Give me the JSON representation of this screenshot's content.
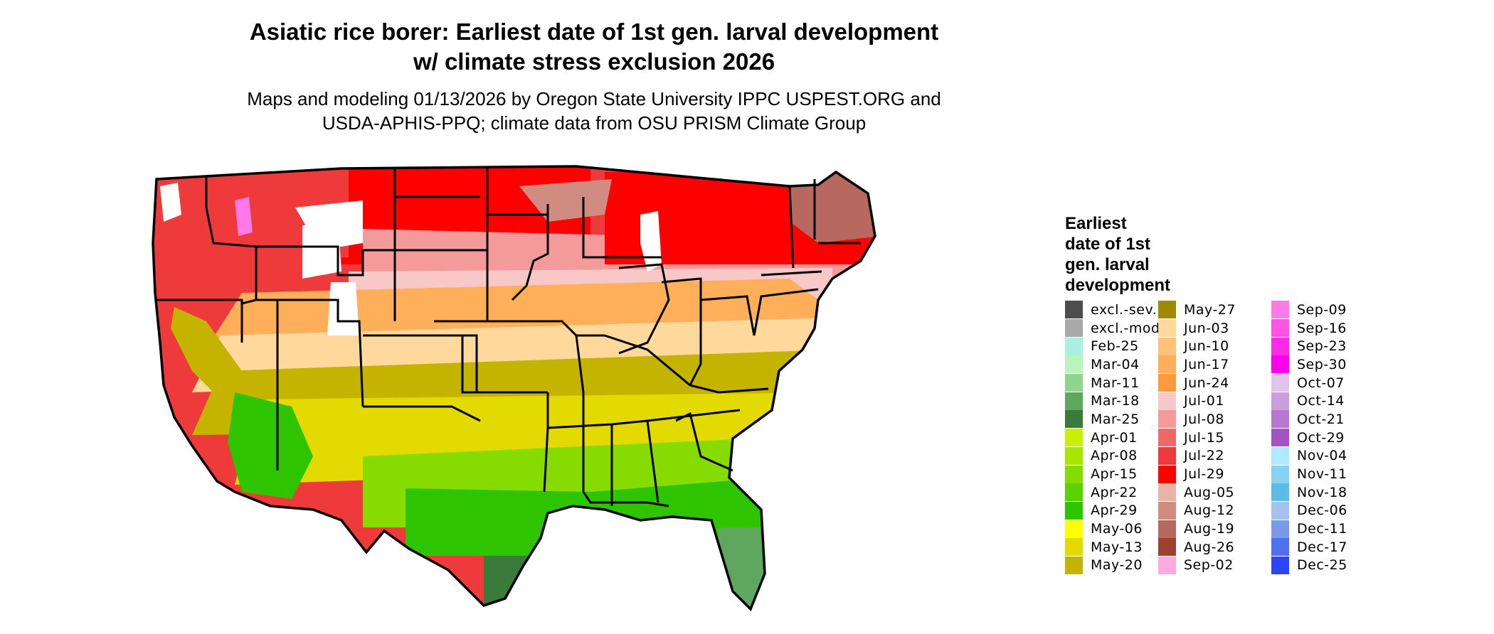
{
  "title": {
    "line1": "Asiatic rice borer: Earliest date of 1st gen. larval development",
    "line2": "w/ climate stress exclusion 2026"
  },
  "subtitle": {
    "line1": "Maps and modeling 01/13/2026 by Oregon State University IPPC USPEST.ORG and",
    "line2": "USDA-APHIS-PPQ; climate data from OSU PRISM Climate Group"
  },
  "legend": {
    "title_lines": [
      "Earliest",
      "date of 1st",
      "gen. larval",
      "development"
    ],
    "items": [
      {
        "label": "excl.-sev.",
        "color": "#4d4d4d"
      },
      {
        "label": "excl.-mod.",
        "color": "#a9a9a9"
      },
      {
        "label": "Feb-25",
        "color": "#aaf0e1"
      },
      {
        "label": "Mar-04",
        "color": "#b9f5b9"
      },
      {
        "label": "Mar-11",
        "color": "#8fd48f"
      },
      {
        "label": "Mar-18",
        "color": "#5fa65f"
      },
      {
        "label": "Mar-25",
        "color": "#3a7a3a"
      },
      {
        "label": "Apr-01",
        "color": "#c8f000"
      },
      {
        "label": "Apr-08",
        "color": "#a8e600"
      },
      {
        "label": "Apr-15",
        "color": "#86dc00"
      },
      {
        "label": "Apr-22",
        "color": "#5ad200"
      },
      {
        "label": "Apr-29",
        "color": "#2fc400"
      },
      {
        "label": "May-06",
        "color": "#ffff00"
      },
      {
        "label": "May-13",
        "color": "#e2da00"
      },
      {
        "label": "May-20",
        "color": "#c4b400"
      },
      {
        "label": "May-27",
        "color": "#9e8a00"
      },
      {
        "label": "Jun-03",
        "color": "#ffd89b"
      },
      {
        "label": "Jun-10",
        "color": "#ffc27a"
      },
      {
        "label": "Jun-17",
        "color": "#ffae5a"
      },
      {
        "label": "Jun-24",
        "color": "#ff9a3a"
      },
      {
        "label": "Jul-01",
        "color": "#f8c8c8"
      },
      {
        "label": "Jul-08",
        "color": "#f49a9a"
      },
      {
        "label": "Jul-15",
        "color": "#f06868"
      },
      {
        "label": "Jul-22",
        "color": "#ee3a3a"
      },
      {
        "label": "Jul-29",
        "color": "#ff0000"
      },
      {
        "label": "Aug-05",
        "color": "#e8b4a8"
      },
      {
        "label": "Aug-12",
        "color": "#d08c80"
      },
      {
        "label": "Aug-19",
        "color": "#b8685e"
      },
      {
        "label": "Aug-26",
        "color": "#9c4030"
      },
      {
        "label": "Sep-02",
        "color": "#ffaae0"
      },
      {
        "label": "Sep-09",
        "color": "#ff7ae6"
      },
      {
        "label": "Sep-16",
        "color": "#ff52e6"
      },
      {
        "label": "Sep-23",
        "color": "#ff2ae6"
      },
      {
        "label": "Sep-30",
        "color": "#ff00ee"
      },
      {
        "label": "Oct-07",
        "color": "#e0c4ec"
      },
      {
        "label": "Oct-14",
        "color": "#cc9ee0"
      },
      {
        "label": "Oct-21",
        "color": "#b878d2"
      },
      {
        "label": "Oct-29",
        "color": "#a452c4"
      },
      {
        "label": "Nov-04",
        "color": "#b0eaff"
      },
      {
        "label": "Nov-11",
        "color": "#86d2f2"
      },
      {
        "label": "Nov-18",
        "color": "#5cbce6"
      },
      {
        "label": "Dec-06",
        "color": "#a6c2ec"
      },
      {
        "label": "Dec-11",
        "color": "#7c98e8"
      },
      {
        "label": "Dec-17",
        "color": "#5070f0"
      },
      {
        "label": "Dec-25",
        "color": "#2a44ff"
      }
    ]
  },
  "map": {
    "region_colors": {
      "north_west": "#ee3a3a",
      "north_central": "#ff0000",
      "upper_plains": "#f49a9a",
      "central": "#f8c8c8",
      "mid_south": "#ffae5a",
      "south_transition": "#ffd89b",
      "deep_south": "#c4b400",
      "gulf": "#e2da00",
      "gulf_coast": "#86dc00",
      "coast_green": "#2fc400",
      "florida_tip": "#5fa65f",
      "texas_tip": "#3a7a3a",
      "mountains": "#ffffff",
      "mountain_pink": "#ff7ae6",
      "new_england": "#b8685e",
      "aug": "#d08c80",
      "california_valley": "#c4b400",
      "desert_green": "#2fc400",
      "excluded": "#a9a9a9",
      "border": "#000000"
    }
  }
}
